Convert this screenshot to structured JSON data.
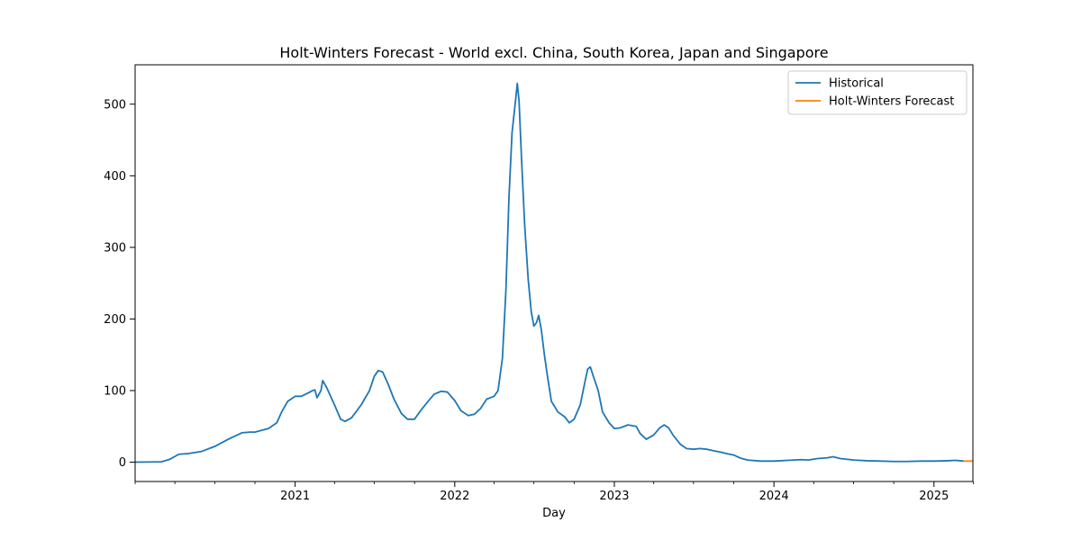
{
  "chart_data": {
    "type": "line",
    "title": "Holt-Winters Forecast - World excl. China, South Korea, Japan and Singapore",
    "xlabel": "Day",
    "ylabel": "",
    "xlim": [
      "2020-01-01",
      "2025-03-31"
    ],
    "ylim": [
      -27,
      555
    ],
    "x_ticks": [
      {
        "date": "2021-01-01",
        "label": "2021"
      },
      {
        "date": "2022-01-01",
        "label": "2022"
      },
      {
        "date": "2023-01-01",
        "label": "2023"
      },
      {
        "date": "2024-01-01",
        "label": "2024"
      },
      {
        "date": "2025-01-01",
        "label": "2025"
      }
    ],
    "x_minor_ticks": [
      "2020-01-01",
      "2020-04-01",
      "2020-07-01",
      "2020-10-01",
      "2021-04-01",
      "2021-07-01",
      "2021-10-01",
      "2022-04-01",
      "2022-07-01",
      "2022-10-01",
      "2023-04-01",
      "2023-07-01",
      "2023-10-01",
      "2024-04-01",
      "2024-07-01",
      "2024-10-01",
      "2025-04-01"
    ],
    "y_ticks": [
      0,
      100,
      200,
      300,
      400,
      500
    ],
    "grid": false,
    "legend_position": "top-right",
    "series": [
      {
        "name": "Historical",
        "color": "#1f77b4",
        "points": [
          [
            "2020-01-01",
            0
          ],
          [
            "2020-03-01",
            0.5
          ],
          [
            "2020-03-20",
            4
          ],
          [
            "2020-04-10",
            11
          ],
          [
            "2020-05-01",
            12
          ],
          [
            "2020-06-01",
            15
          ],
          [
            "2020-07-01",
            22
          ],
          [
            "2020-08-01",
            32
          ],
          [
            "2020-09-01",
            41
          ],
          [
            "2020-09-20",
            42
          ],
          [
            "2020-10-01",
            42
          ],
          [
            "2020-11-01",
            47
          ],
          [
            "2020-11-20",
            55
          ],
          [
            "2020-12-01",
            70
          ],
          [
            "2020-12-15",
            85
          ],
          [
            "2021-01-01",
            92
          ],
          [
            "2021-01-15",
            92
          ],
          [
            "2021-02-01",
            97
          ],
          [
            "2021-02-10",
            100
          ],
          [
            "2021-02-15",
            101
          ],
          [
            "2021-02-20",
            90
          ],
          [
            "2021-03-01",
            100
          ],
          [
            "2021-03-05",
            114
          ],
          [
            "2021-03-15",
            103
          ],
          [
            "2021-04-01",
            80
          ],
          [
            "2021-04-15",
            60
          ],
          [
            "2021-04-25",
            57
          ],
          [
            "2021-05-10",
            62
          ],
          [
            "2021-06-01",
            80
          ],
          [
            "2021-06-20",
            100
          ],
          [
            "2021-07-01",
            120
          ],
          [
            "2021-07-10",
            128
          ],
          [
            "2021-07-20",
            126
          ],
          [
            "2021-08-01",
            110
          ],
          [
            "2021-08-15",
            88
          ],
          [
            "2021-09-01",
            68
          ],
          [
            "2021-09-15",
            60
          ],
          [
            "2021-10-01",
            60
          ],
          [
            "2021-10-15",
            72
          ],
          [
            "2021-11-01",
            85
          ],
          [
            "2021-11-15",
            95
          ],
          [
            "2021-12-01",
            99
          ],
          [
            "2021-12-15",
            98
          ],
          [
            "2022-01-01",
            86
          ],
          [
            "2022-01-15",
            72
          ],
          [
            "2022-02-01",
            65
          ],
          [
            "2022-02-15",
            67
          ],
          [
            "2022-03-01",
            75
          ],
          [
            "2022-03-15",
            88
          ],
          [
            "2022-04-01",
            92
          ],
          [
            "2022-04-10",
            100
          ],
          [
            "2022-04-20",
            145
          ],
          [
            "2022-04-28",
            240
          ],
          [
            "2022-05-05",
            370
          ],
          [
            "2022-05-12",
            460
          ],
          [
            "2022-05-20",
            505
          ],
          [
            "2022-05-24",
            529
          ],
          [
            "2022-05-28",
            505
          ],
          [
            "2022-06-03",
            420
          ],
          [
            "2022-06-10",
            330
          ],
          [
            "2022-06-18",
            255
          ],
          [
            "2022-06-25",
            210
          ],
          [
            "2022-07-01",
            190
          ],
          [
            "2022-07-07",
            195
          ],
          [
            "2022-07-12",
            205
          ],
          [
            "2022-07-18",
            185
          ],
          [
            "2022-07-25",
            150
          ],
          [
            "2022-08-01",
            120
          ],
          [
            "2022-08-10",
            85
          ],
          [
            "2022-08-25",
            70
          ],
          [
            "2022-09-10",
            63
          ],
          [
            "2022-09-20",
            55
          ],
          [
            "2022-10-01",
            60
          ],
          [
            "2022-10-15",
            80
          ],
          [
            "2022-10-25",
            110
          ],
          [
            "2022-11-01",
            130
          ],
          [
            "2022-11-07",
            133
          ],
          [
            "2022-11-15",
            118
          ],
          [
            "2022-11-25",
            100
          ],
          [
            "2022-12-05",
            70
          ],
          [
            "2022-12-20",
            55
          ],
          [
            "2023-01-01",
            47
          ],
          [
            "2023-01-15",
            48
          ],
          [
            "2023-02-01",
            52
          ],
          [
            "2023-02-20",
            50
          ],
          [
            "2023-03-01",
            40
          ],
          [
            "2023-03-15",
            32
          ],
          [
            "2023-04-01",
            38
          ],
          [
            "2023-04-15",
            48
          ],
          [
            "2023-04-25",
            52
          ],
          [
            "2023-05-05",
            48
          ],
          [
            "2023-05-15",
            38
          ],
          [
            "2023-06-01",
            25
          ],
          [
            "2023-06-15",
            19
          ],
          [
            "2023-07-01",
            18
          ],
          [
            "2023-07-15",
            19
          ],
          [
            "2023-08-01",
            18
          ],
          [
            "2023-08-15",
            16
          ],
          [
            "2023-09-01",
            14
          ],
          [
            "2023-09-15",
            12
          ],
          [
            "2023-10-01",
            10
          ],
          [
            "2023-10-15",
            6
          ],
          [
            "2023-11-01",
            3
          ],
          [
            "2023-12-01",
            1.5
          ],
          [
            "2024-01-01",
            1.5
          ],
          [
            "2024-02-01",
            2.5
          ],
          [
            "2024-03-01",
            3.5
          ],
          [
            "2024-03-20",
            3
          ],
          [
            "2024-04-10",
            5
          ],
          [
            "2024-05-01",
            6
          ],
          [
            "2024-05-15",
            7.5
          ],
          [
            "2024-06-01",
            5
          ],
          [
            "2024-07-01",
            3
          ],
          [
            "2024-08-01",
            2
          ],
          [
            "2024-09-01",
            1.5
          ],
          [
            "2024-10-01",
            1
          ],
          [
            "2024-11-01",
            1
          ],
          [
            "2024-12-01",
            1.5
          ],
          [
            "2025-01-01",
            1.5
          ],
          [
            "2025-02-01",
            2
          ],
          [
            "2025-02-20",
            2.5
          ],
          [
            "2025-03-01",
            2
          ],
          [
            "2025-03-10",
            1.5
          ]
        ]
      },
      {
        "name": "Holt-Winters Forecast",
        "color": "#ff7f0e",
        "points": [
          [
            "2025-03-10",
            1.5
          ],
          [
            "2025-03-31",
            1.5
          ]
        ]
      }
    ]
  }
}
